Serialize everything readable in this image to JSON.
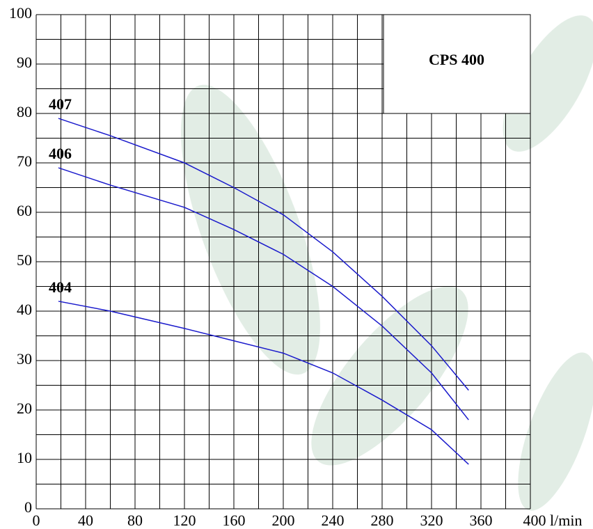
{
  "chart_data": {
    "type": "line",
    "title": "CPS 400",
    "x_label": "l/min",
    "x": [
      18,
      60,
      120,
      160,
      200,
      240,
      280,
      320,
      350
    ],
    "series": [
      {
        "name": "407",
        "color": "#1a1acc",
        "values": [
          79,
          75.5,
          70,
          65,
          59.5,
          52,
          43,
          33,
          24
        ]
      },
      {
        "name": "406",
        "color": "#1a1acc",
        "values": [
          69,
          65.5,
          61,
          56.5,
          51.5,
          45,
          37,
          27.5,
          18
        ]
      },
      {
        "name": "404",
        "color": "#1a1acc",
        "values": [
          42,
          40,
          36.5,
          34,
          31.5,
          27.5,
          22,
          16,
          9
        ]
      }
    ],
    "xlim": [
      0,
      400
    ],
    "ylim": [
      0,
      100
    ],
    "xticks": [
      0,
      40,
      80,
      120,
      160,
      200,
      240,
      280,
      320,
      360,
      400
    ],
    "yticks": [
      0,
      10,
      20,
      30,
      40,
      50,
      60,
      70,
      80,
      90,
      100
    ],
    "grid": true,
    "minor_grid": true
  }
}
